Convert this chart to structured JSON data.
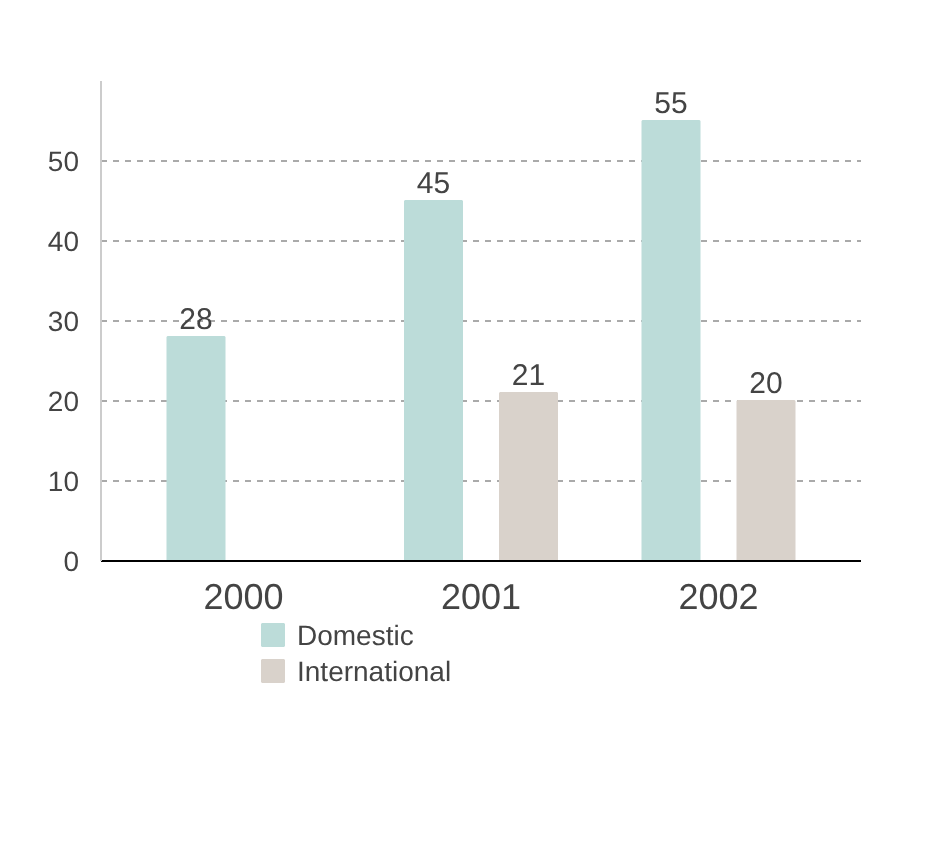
{
  "chart_data": {
    "type": "bar",
    "categories": [
      "2000",
      "2001",
      "2002"
    ],
    "series": [
      {
        "name": "Domestic",
        "color": "#bcdcd9",
        "values": [
          28,
          45,
          55
        ]
      },
      {
        "name": "International",
        "color": "#d9d2cb",
        "values": [
          null,
          21,
          20
        ]
      }
    ],
    "ylim": [
      0,
      60
    ],
    "yticks": [
      0,
      10,
      20,
      30,
      40,
      50
    ],
    "grid": "y",
    "legend": "bottom left",
    "data_labels": true
  }
}
